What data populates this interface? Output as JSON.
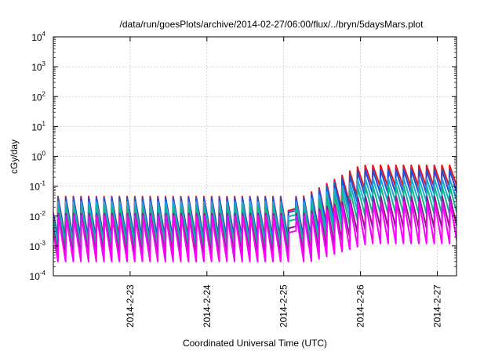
{
  "chart_data": {
    "type": "line",
    "title": "/data/run/goesPlots/archive/2014-02-27/06:00/flux/../bryn/5daysMars.plot",
    "xlabel": "Coordinated Universal Time (UTC)",
    "ylabel": "cGy/day",
    "yscale": "log",
    "ylim": [
      0.0001,
      10000
    ],
    "xlim": [
      "2014-02-22 00:00",
      "2014-02-27 06:00"
    ],
    "y_ticks": [
      {
        "base": "10",
        "exp": "-4",
        "value": 0.0001
      },
      {
        "base": "10",
        "exp": "-3",
        "value": 0.001
      },
      {
        "base": "10",
        "exp": "-2",
        "value": 0.01
      },
      {
        "base": "10",
        "exp": "-1",
        "value": 0.1
      },
      {
        "base": "10",
        "exp": "0",
        "value": 1
      },
      {
        "base": "10",
        "exp": "1",
        "value": 10
      },
      {
        "base": "10",
        "exp": "2",
        "value": 100
      },
      {
        "base": "10",
        "exp": "3",
        "value": 1000
      },
      {
        "base": "10",
        "exp": "4",
        "value": 10000
      }
    ],
    "x_ticks": [
      {
        "label": "2014-2-23",
        "value": "2014-02-23 00:00"
      },
      {
        "label": "2014-2-24",
        "value": "2014-02-24 00:00"
      },
      {
        "label": "2014-2-25",
        "value": "2014-02-25 00:00"
      },
      {
        "label": "2014-2-26",
        "value": "2014-02-26 00:00"
      },
      {
        "label": "2014-2-27",
        "value": "2014-02-27 00:00"
      }
    ],
    "grid": true,
    "sawtooth_period_hours": 2.4,
    "series": [
      {
        "color": "#e8141c",
        "peak_before": 0.045,
        "trough_before": 0.002,
        "peak_after": 0.5,
        "trough_after": 0.1
      },
      {
        "color": "#1f4fd8",
        "peak_before": 0.04,
        "trough_before": 0.0017,
        "peak_after": 0.35,
        "trough_after": 0.06
      },
      {
        "color": "#20a7d8",
        "peak_before": 0.03,
        "trough_before": 0.0012,
        "peak_after": 0.18,
        "trough_after": 0.03
      },
      {
        "color": "#12b58c",
        "peak_before": 0.02,
        "trough_before": 0.0009,
        "peak_after": 0.1,
        "trough_after": 0.012
      },
      {
        "color": "#8b1a8b",
        "peak_before": 0.012,
        "trough_before": 0.0005,
        "peak_after": 0.045,
        "trough_after": 0.004
      },
      {
        "color": "#ff00ff",
        "peak_before": 0.01,
        "trough_before": 0.0003,
        "peak_after": 0.03,
        "trough_after": 0.0012
      }
    ],
    "step_change_at": "2014-02-25 06:00",
    "smoothed_segments": [
      {
        "start": "2014-02-25 00:00",
        "end": "2014-02-25 02:24"
      }
    ]
  }
}
